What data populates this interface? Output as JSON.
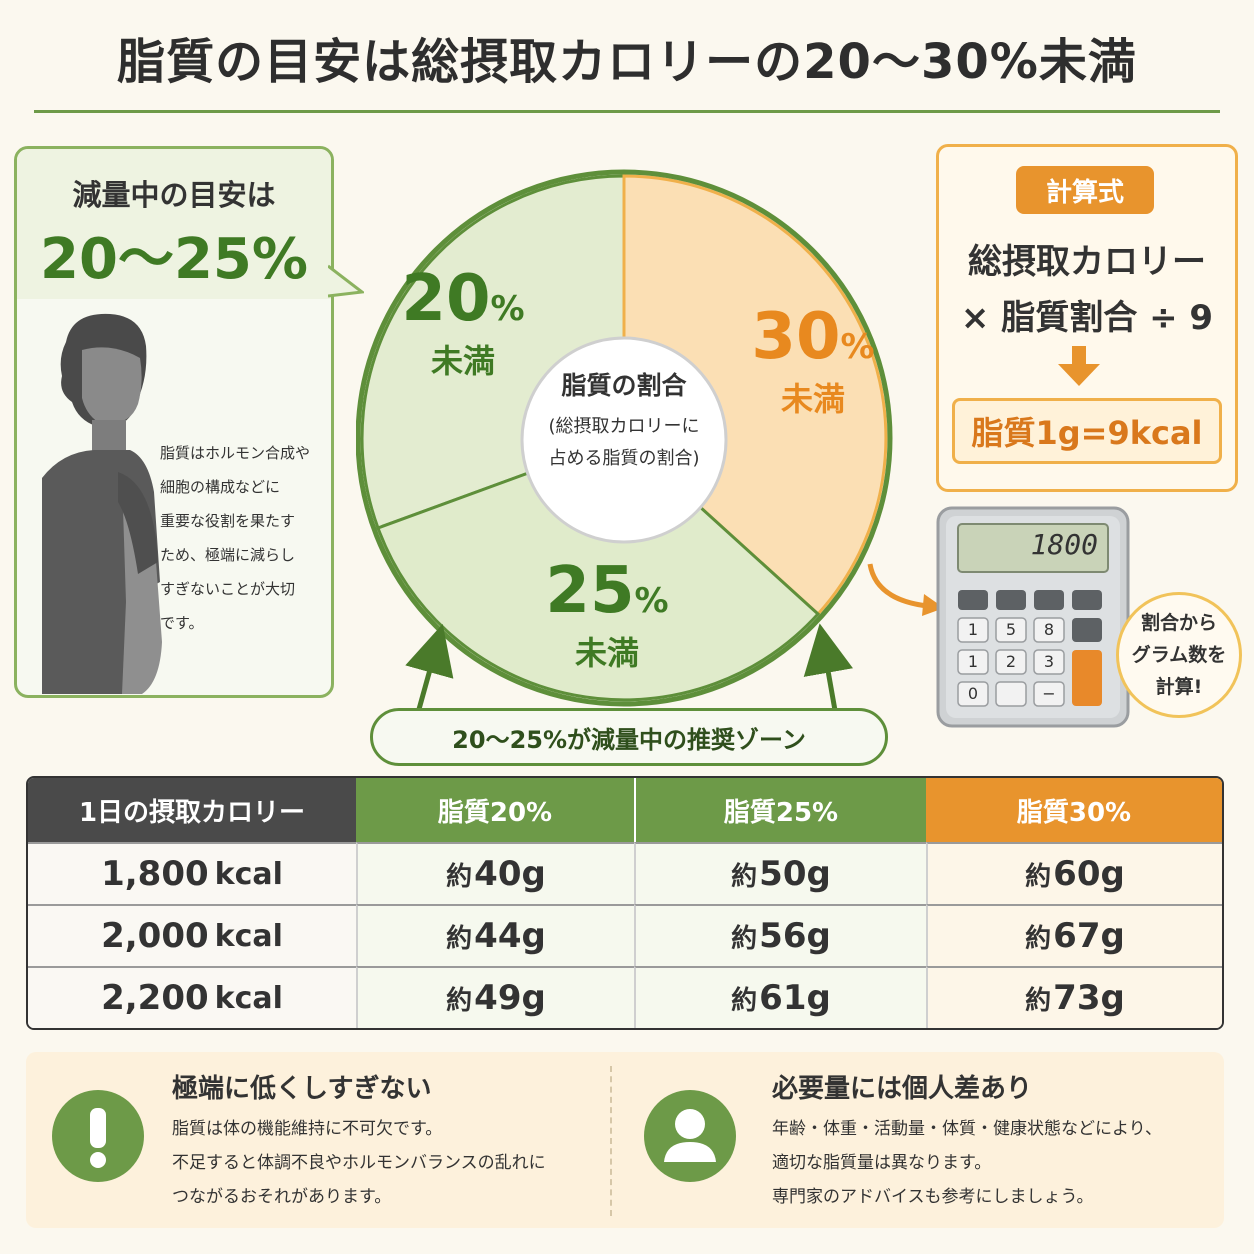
{
  "title": "脂質の目安は総摂取カロリーの20〜30%未満",
  "left_panel": {
    "heading": "減量中の目安は",
    "range": "20〜25%",
    "note_lines": [
      "脂質はホルモン合成や",
      "細胞の構成などに",
      "重要な役割を果たす",
      "ため、極端に減らし",
      "すぎないことが大切",
      "です。"
    ]
  },
  "pie": {
    "center_title": "脂質の割合",
    "center_sub_1": "(総摂取カロリーに",
    "center_sub_2": "占める脂質の割合)",
    "segments": [
      {
        "num": "20",
        "sign": "%",
        "under": "未満",
        "color": "#3f7a24"
      },
      {
        "num": "30",
        "sign": "%",
        "under": "未満",
        "color": "#e8891f"
      },
      {
        "num": "25",
        "sign": "%",
        "under": "未満",
        "color": "#3f7a24"
      }
    ],
    "zone_label": "20〜25%が減量中の推奨ゾーン"
  },
  "formula": {
    "tag": "計算式",
    "line1": "総摂取カロリー",
    "line2": "× 脂質割合 ÷ 9",
    "result": "脂質1g=9kcal"
  },
  "calculator": {
    "display": "1800",
    "keys": [
      "1",
      "5",
      "8",
      "1",
      "2",
      "3",
      "0",
      "−"
    ],
    "bubble_1": "割合から",
    "bubble_2": "グラム数を",
    "bubble_3": "計算!"
  },
  "table": {
    "headers": [
      "1日の摂取カロリー",
      "脂質20%",
      "脂質25%",
      "脂質30%"
    ],
    "header_colors": [
      "#4a4a4a",
      "#6d9a48",
      "#6d9a48",
      "#e8942d"
    ],
    "prefix": "約",
    "unit": "kcal",
    "rows": [
      {
        "kcal": "1,800",
        "v20": "40g",
        "v25": "50g",
        "v30": "60g"
      },
      {
        "kcal": "2,000",
        "v20": "44g",
        "v25": "56g",
        "v30": "67g"
      },
      {
        "kcal": "2,200",
        "v20": "49g",
        "v25": "61g",
        "v30": "73g"
      }
    ]
  },
  "notes": [
    {
      "icon": "exclamation-icon",
      "title": "極端に低くしすぎない",
      "lines": [
        "脂質は体の機能維持に不可欠です。",
        "不足すると体調不良やホルモンバランスの乱れに",
        "つながるおそれがあります。"
      ]
    },
    {
      "icon": "person-icon",
      "title": "必要量には個人差あり",
      "lines": [
        "年齢・体重・活動量・体質・健康状態などにより、",
        "適切な脂質量は異なります。",
        "専門家のアドバイスも参考にしましょう。"
      ]
    }
  ]
}
